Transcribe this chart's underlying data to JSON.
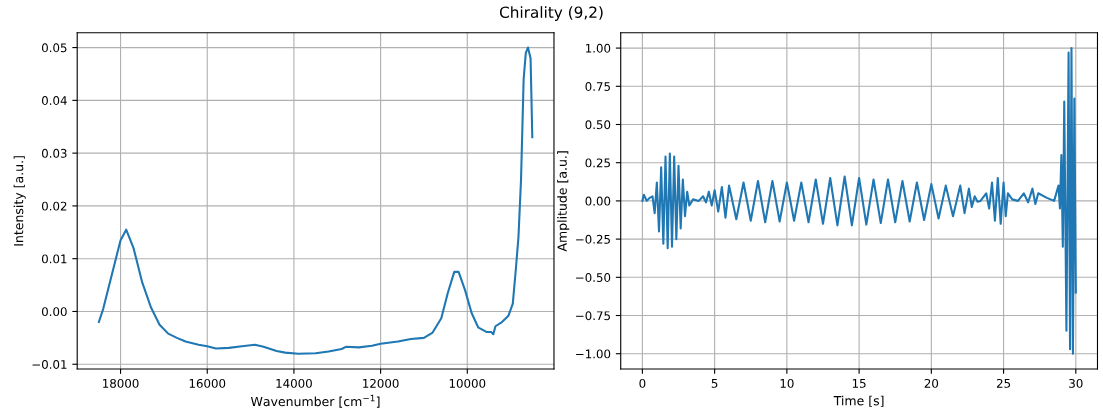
{
  "chart_data": [
    {
      "type": "line",
      "title": "Chirality (9,2)",
      "xlabel": "Wavenumber [cm$^{−1}$]",
      "ylabel": "Intensity [a.u.]",
      "x": [
        18500,
        18400,
        18200,
        18000,
        17870,
        17700,
        17500,
        17300,
        17100,
        16900,
        16700,
        16500,
        16200,
        16000,
        15800,
        15500,
        15200,
        14900,
        14700,
        14400,
        14200,
        13900,
        13500,
        13200,
        12900,
        12800,
        12500,
        12200,
        12000,
        11600,
        11300,
        11000,
        10800,
        10600,
        10450,
        10300,
        10200,
        10050,
        9900,
        9750,
        9550,
        9450,
        9400,
        9350,
        9200,
        9050,
        8950,
        8880,
        8820,
        8760,
        8700,
        8650,
        8600,
        8540,
        8500
      ],
      "series": [
        {
          "color": "#1f77b4",
          "values": [
            -0.002,
            0.0005,
            0.007,
            0.0135,
            0.0155,
            0.012,
            0.0055,
            0.0008,
            -0.0025,
            -0.0042,
            -0.005,
            -0.0057,
            -0.0063,
            -0.0066,
            -0.007,
            -0.0069,
            -0.0066,
            -0.0063,
            -0.0067,
            -0.0075,
            -0.0078,
            -0.008,
            -0.0079,
            -0.0076,
            -0.0071,
            -0.0067,
            -0.0068,
            -0.0065,
            -0.0061,
            -0.0057,
            -0.0052,
            -0.005,
            -0.004,
            -0.0013,
            0.0035,
            0.0075,
            0.0075,
            0.004,
            -0.0003,
            -0.003,
            -0.0039,
            -0.0039,
            -0.0043,
            -0.0028,
            -0.002,
            -0.0008,
            0.0015,
            0.008,
            0.014,
            0.025,
            0.044,
            0.049,
            0.05,
            0.048,
            0.033
          ]
        }
      ],
      "xlim": [
        19000,
        8000
      ],
      "xticks": [
        18000,
        16000,
        14000,
        12000,
        10000
      ],
      "ylim": [
        -0.0109,
        0.0528
      ],
      "yticks": [
        {
          "value": -0.01,
          "label": "−0.01"
        },
        {
          "value": 0,
          "label": "0.00"
        },
        {
          "value": 0.01,
          "label": "0.01"
        },
        {
          "value": 0.02,
          "label": "0.02"
        },
        {
          "value": 0.03,
          "label": "0.03"
        },
        {
          "value": 0.04,
          "label": "0.04"
        },
        {
          "value": 0.05,
          "label": "0.05"
        }
      ],
      "grid": true
    },
    {
      "type": "line",
      "xlabel": "Time [s]",
      "ylabel": "Amplitude [a.u.]",
      "x": [
        0,
        0.1,
        0.3,
        0.5,
        0.7,
        0.85,
        1.0,
        1.15,
        1.3,
        1.45,
        1.6,
        1.75,
        1.9,
        2.05,
        2.2,
        2.35,
        2.5,
        2.65,
        2.8,
        2.95,
        3.1,
        3.25,
        3.5,
        3.9,
        4.2,
        4.4,
        4.6,
        4.8,
        5.0,
        5.25,
        5.5,
        5.75,
        6,
        6.5,
        7,
        7.5,
        8,
        8.5,
        9,
        9.5,
        10,
        10.5,
        11,
        11.5,
        12,
        12.5,
        13,
        13.5,
        14,
        14.5,
        15,
        15.5,
        16,
        16.5,
        17,
        17.5,
        18,
        18.5,
        19,
        19.5,
        20,
        20.5,
        21,
        21.5,
        22,
        22.3,
        22.6,
        22.8,
        23.0,
        23.2,
        23.4,
        23.8,
        24.0,
        24.2,
        24.4,
        24.6,
        24.8,
        25.0,
        25.15,
        25.3,
        25.6,
        26.0,
        26.4,
        26.7,
        27.0,
        27.2,
        27.4,
        28.0,
        28.5,
        28.8,
        28.9,
        29.0,
        29.1,
        29.2,
        29.35,
        29.5,
        29.6,
        29.7,
        29.8,
        29.9,
        30
      ],
      "series": [
        {
          "color": "#1f77b4",
          "values": [
            0,
            0.04,
            0,
            0.02,
            0.03,
            -0.08,
            0.12,
            -0.2,
            0.22,
            -0.28,
            0.29,
            -0.31,
            0.31,
            -0.3,
            0.29,
            -0.25,
            0.23,
            -0.18,
            0.14,
            -0.1,
            0.06,
            -0.03,
            0.01,
            0,
            0.03,
            -0.01,
            0.06,
            -0.03,
            0.07,
            -0.07,
            0.09,
            -0.11,
            0.1,
            -0.12,
            0.12,
            -0.13,
            0.13,
            -0.14,
            0.13,
            -0.135,
            0.12,
            -0.13,
            0.12,
            -0.14,
            0.14,
            -0.15,
            0.15,
            -0.16,
            0.16,
            -0.16,
            0.15,
            -0.155,
            0.14,
            -0.145,
            0.14,
            -0.14,
            0.13,
            -0.135,
            0.12,
            -0.125,
            0.11,
            -0.115,
            0.1,
            -0.1,
            0.1,
            -0.08,
            0.08,
            -0.04,
            0.03,
            -0.005,
            0,
            0.05,
            -0.05,
            0.12,
            -0.13,
            0.15,
            -0.15,
            0.12,
            -0.1,
            0.05,
            0.01,
            0,
            0.05,
            -0.01,
            0.08,
            -0.02,
            0.05,
            0.02,
            0,
            0.1,
            -0.05,
            0.3,
            -0.3,
            0.65,
            -0.85,
            0.97,
            -0.97,
            1.0,
            -1.0,
            0.67,
            -0.6
          ]
        }
      ],
      "xlim": [
        -1.5,
        31.5
      ],
      "xticks": [
        0,
        5,
        10,
        15,
        20,
        25,
        30
      ],
      "ylim": [
        -1.1,
        1.1
      ],
      "yticks": [
        {
          "value": -1,
          "label": "−1.00"
        },
        {
          "value": -0.75,
          "label": "−0.75"
        },
        {
          "value": -0.5,
          "label": "−0.50"
        },
        {
          "value": -0.25,
          "label": "−0.25"
        },
        {
          "value": 0,
          "label": "0.00"
        },
        {
          "value": 0.25,
          "label": "0.25"
        },
        {
          "value": 0.5,
          "label": "0.50"
        },
        {
          "value": 0.75,
          "label": "0.75"
        },
        {
          "value": 1,
          "label": "1.00"
        }
      ],
      "grid": true
    }
  ]
}
